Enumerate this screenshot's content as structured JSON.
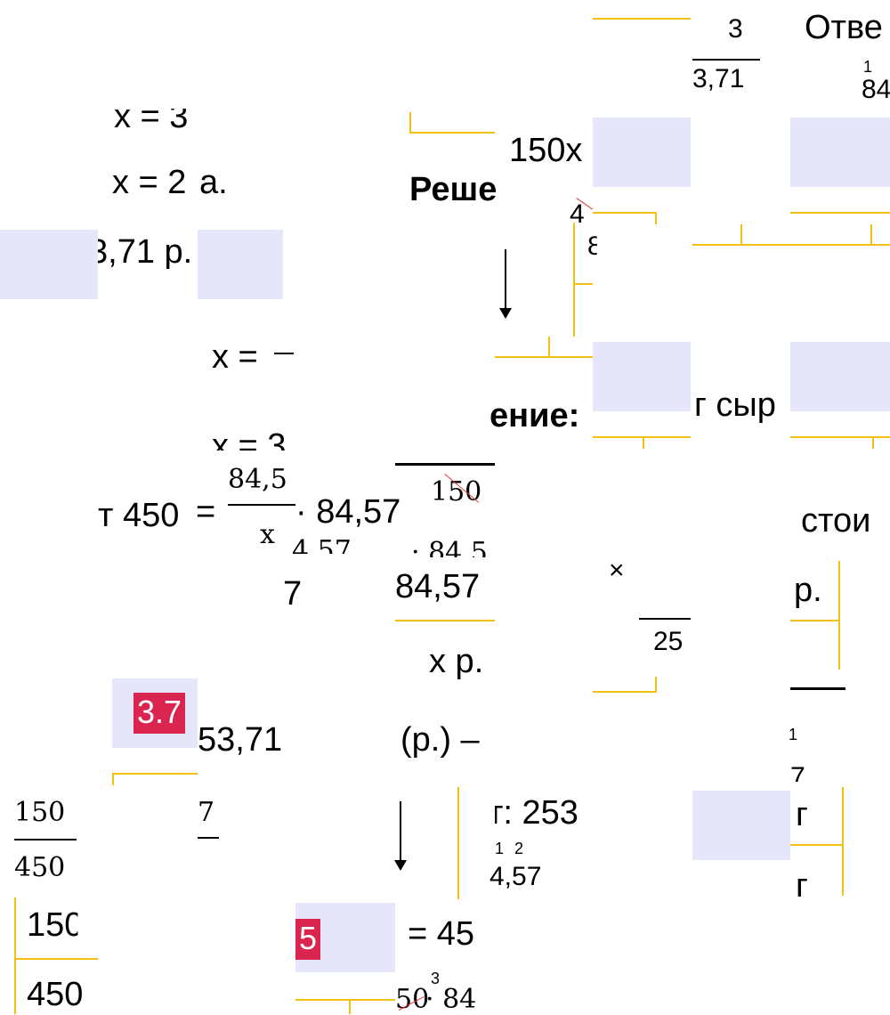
{
  "fragments": {
    "a1": "3",
    "a2": "3,71",
    "a3": "Отве",
    "a4": "1",
    "a5": "84",
    "b1": "x = 3",
    "b2": "x = 2",
    "b3": "а.",
    "b4": "3,71 р.",
    "c1": "150x",
    "c2": "Реше",
    "c3": "4",
    "c4": "8",
    "d1": "x =",
    "d2": "ение:",
    "d3": "г сыр",
    "e1": "x = 3",
    "e2": "т 450",
    "e3": "=",
    "e4": "84,5",
    "e5": "x",
    "e6": "· 84,57",
    "e7": "150",
    "e8": "4.57",
    "e9": "· 84,5",
    "f1": "стои",
    "f2": "7",
    "f3": "84,57",
    "f4": "×",
    "f5": "р.",
    "f6": "25",
    "g1": "x р.",
    "g2": "3.7",
    "g3": "53,71",
    "g4": "(р.) –",
    "g5": "1",
    "g6": "7",
    "h1": "150",
    "h2": "450",
    "h3": "7",
    "h4": "т: 253",
    "h5": "1",
    "h6": "2",
    "h7": "4,57",
    "h8": "г",
    "h9": "г",
    "i1": "150",
    "i2": "450",
    "i3": "5",
    "i4": "= 45",
    "i5": "3",
    "i6": "50",
    "i7": "· 84"
  },
  "colors": {
    "placeholder": "#e6e6fa",
    "badge": "#d9254f",
    "bracket": "#f2c014",
    "strike": "#e53b3b"
  }
}
